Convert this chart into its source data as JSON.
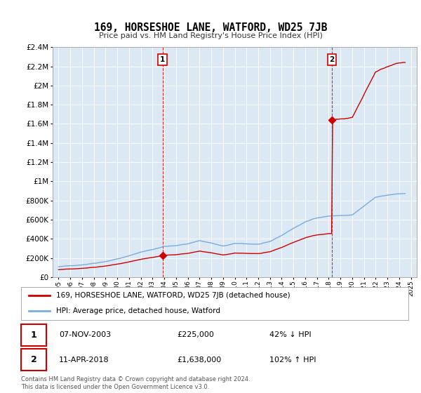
{
  "title": "169, HORSESHOE LANE, WATFORD, WD25 7JB",
  "subtitle": "Price paid vs. HM Land Registry's House Price Index (HPI)",
  "background_color": "#ffffff",
  "plot_bg_color": "#dce9f5",
  "grid_color": "#ffffff",
  "sale1_date": 2003.85,
  "sale1_price": 225000,
  "sale2_date": 2018.28,
  "sale2_price": 1638000,
  "sale1_label": "07-NOV-2003",
  "sale2_label": "11-APR-2018",
  "sale1_text": "£225,000",
  "sale2_text": "£1,638,000",
  "sale1_pct": "42% ↓ HPI",
  "sale2_pct": "102% ↑ HPI",
  "legend1": "169, HORSESHOE LANE, WATFORD, WD25 7JB (detached house)",
  "legend2": "HPI: Average price, detached house, Watford",
  "footer": "Contains HM Land Registry data © Crown copyright and database right 2024.\nThis data is licensed under the Open Government Licence v3.0.",
  "line_color_red": "#cc0000",
  "line_color_blue": "#7aabdb",
  "dashed_color": "#cc0000",
  "marker_box_color": "#cc0000",
  "ylim_min": 0,
  "ylim_max": 2400000,
  "xlim_min": 1994.5,
  "xlim_max": 2025.5,
  "hpi_years": [
    1995,
    1995.083,
    1995.167,
    1995.25,
    1995.333,
    1995.417,
    1995.5,
    1995.583,
    1995.667,
    1995.75,
    1995.833,
    1995.917,
    1996,
    1996.083,
    1996.167,
    1996.25,
    1996.333,
    1996.417,
    1996.5,
    1996.583,
    1996.667,
    1996.75,
    1996.833,
    1996.917,
    1997,
    1997.083,
    1997.167,
    1997.25,
    1997.333,
    1997.417,
    1997.5,
    1997.583,
    1997.667,
    1997.75,
    1997.833,
    1997.917,
    1998,
    1998.083,
    1998.167,
    1998.25,
    1998.333,
    1998.417,
    1998.5,
    1998.583,
    1998.667,
    1998.75,
    1998.833,
    1998.917,
    1999,
    1999.083,
    1999.167,
    1999.25,
    1999.333,
    1999.417,
    1999.5,
    1999.583,
    1999.667,
    1999.75,
    1999.833,
    1999.917,
    2000,
    2000.083,
    2000.167,
    2000.25,
    2000.333,
    2000.417,
    2000.5,
    2000.583,
    2000.667,
    2000.75,
    2000.833,
    2000.917,
    2001,
    2001.083,
    2001.167,
    2001.25,
    2001.333,
    2001.417,
    2001.5,
    2001.583,
    2001.667,
    2001.75,
    2001.833,
    2001.917,
    2002,
    2002.083,
    2002.167,
    2002.25,
    2002.333,
    2002.417,
    2002.5,
    2002.583,
    2002.667,
    2002.75,
    2002.833,
    2002.917,
    2003,
    2003.083,
    2003.167,
    2003.25,
    2003.333,
    2003.417,
    2003.5,
    2003.583,
    2003.667,
    2003.75,
    2003.833,
    2003.917,
    2004,
    2004.083,
    2004.167,
    2004.25,
    2004.333,
    2004.417,
    2004.5,
    2004.583,
    2004.667,
    2004.75,
    2004.833,
    2004.917,
    2005,
    2005.083,
    2005.167,
    2005.25,
    2005.333,
    2005.417,
    2005.5,
    2005.583,
    2005.667,
    2005.75,
    2005.833,
    2005.917,
    2006,
    2006.083,
    2006.167,
    2006.25,
    2006.333,
    2006.417,
    2006.5,
    2006.583,
    2006.667,
    2006.75,
    2006.833,
    2006.917,
    2007,
    2007.083,
    2007.167,
    2007.25,
    2007.333,
    2007.417,
    2007.5,
    2007.583,
    2007.667,
    2007.75,
    2007.833,
    2007.917,
    2008,
    2008.083,
    2008.167,
    2008.25,
    2008.333,
    2008.417,
    2008.5,
    2008.583,
    2008.667,
    2008.75,
    2008.833,
    2008.917,
    2009,
    2009.083,
    2009.167,
    2009.25,
    2009.333,
    2009.417,
    2009.5,
    2009.583,
    2009.667,
    2009.75,
    2009.833,
    2009.917,
    2010,
    2010.083,
    2010.167,
    2010.25,
    2010.333,
    2010.417,
    2010.5,
    2010.583,
    2010.667,
    2010.75,
    2010.833,
    2010.917,
    2011,
    2011.083,
    2011.167,
    2011.25,
    2011.333,
    2011.417,
    2011.5,
    2011.583,
    2011.667,
    2011.75,
    2011.833,
    2011.917,
    2012,
    2012.083,
    2012.167,
    2012.25,
    2012.333,
    2012.417,
    2012.5,
    2012.583,
    2012.667,
    2012.75,
    2012.833,
    2012.917,
    2013,
    2013.083,
    2013.167,
    2013.25,
    2013.333,
    2013.417,
    2013.5,
    2013.583,
    2013.667,
    2013.75,
    2013.833,
    2013.917,
    2014,
    2014.083,
    2014.167,
    2014.25,
    2014.333,
    2014.417,
    2014.5,
    2014.583,
    2014.667,
    2014.75,
    2014.833,
    2014.917,
    2015,
    2015.083,
    2015.167,
    2015.25,
    2015.333,
    2015.417,
    2015.5,
    2015.583,
    2015.667,
    2015.75,
    2015.833,
    2015.917,
    2016,
    2016.083,
    2016.167,
    2016.25,
    2016.333,
    2016.417,
    2016.5,
    2016.583,
    2016.667,
    2016.75,
    2016.833,
    2016.917,
    2017,
    2017.083,
    2017.167,
    2017.25,
    2017.333,
    2017.417,
    2017.5,
    2017.583,
    2017.667,
    2017.75,
    2017.833,
    2017.917,
    2018,
    2018.083,
    2018.167,
    2018.25,
    2018.333,
    2018.417,
    2018.5,
    2018.583,
    2018.667,
    2018.75,
    2018.833,
    2018.917,
    2019,
    2019.083,
    2019.167,
    2019.25,
    2019.333,
    2019.417,
    2019.5,
    2019.583,
    2019.667,
    2019.75,
    2019.833,
    2019.917,
    2020,
    2020.083,
    2020.167,
    2020.25,
    2020.333,
    2020.417,
    2020.5,
    2020.583,
    2020.667,
    2020.75,
    2020.833,
    2020.917,
    2021,
    2021.083,
    2021.167,
    2021.25,
    2021.333,
    2021.417,
    2021.5,
    2021.583,
    2021.667,
    2021.75,
    2021.833,
    2021.917,
    2022,
    2022.083,
    2022.167,
    2022.25,
    2022.333,
    2022.417,
    2022.5,
    2022.583,
    2022.667,
    2022.75,
    2022.833,
    2022.917,
    2023,
    2023.083,
    2023.167,
    2023.25,
    2023.333,
    2023.417,
    2023.5,
    2023.583,
    2023.667,
    2023.75,
    2023.833,
    2023.917,
    2024,
    2024.083,
    2024.167,
    2024.25,
    2024.333,
    2024.417,
    2024.5
  ]
}
